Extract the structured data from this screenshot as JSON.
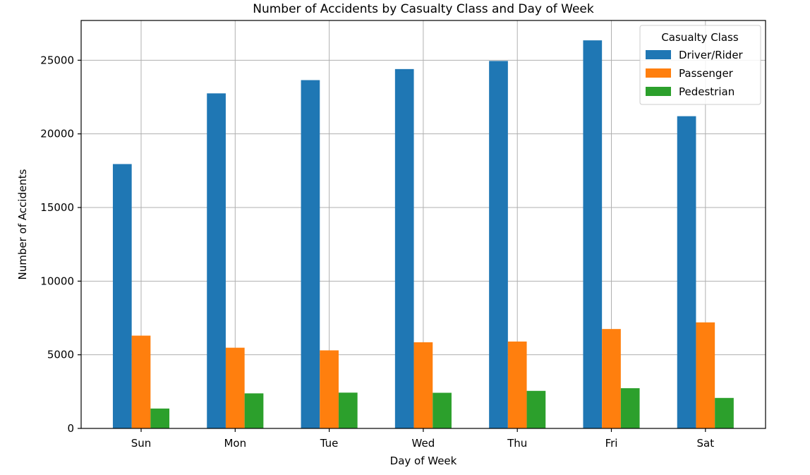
{
  "chart_data": {
    "type": "bar",
    "title": "Number of Accidents by Casualty Class and Day of Week",
    "xlabel": "Day of Week",
    "ylabel": "Number of Accidents",
    "categories": [
      "Sun",
      "Mon",
      "Tue",
      "Wed",
      "Thu",
      "Fri",
      "Sat"
    ],
    "ylim": [
      0,
      27700
    ],
    "yticks": [
      0,
      5000,
      10000,
      15000,
      20000,
      25000
    ],
    "grid": true,
    "legend": {
      "title": "Casualty Class",
      "position": "top-right"
    },
    "series": [
      {
        "name": "Driver/Rider",
        "color": "#1f77b4",
        "values": [
          17950,
          22750,
          23650,
          24400,
          24950,
          26350,
          21200
        ]
      },
      {
        "name": "Passenger",
        "color": "#ff7f0e",
        "values": [
          6300,
          5480,
          5300,
          5850,
          5900,
          6750,
          7200
        ]
      },
      {
        "name": "Pedestrian",
        "color": "#2ca02c",
        "values": [
          1350,
          2380,
          2430,
          2420,
          2550,
          2730,
          2070
        ]
      }
    ]
  }
}
